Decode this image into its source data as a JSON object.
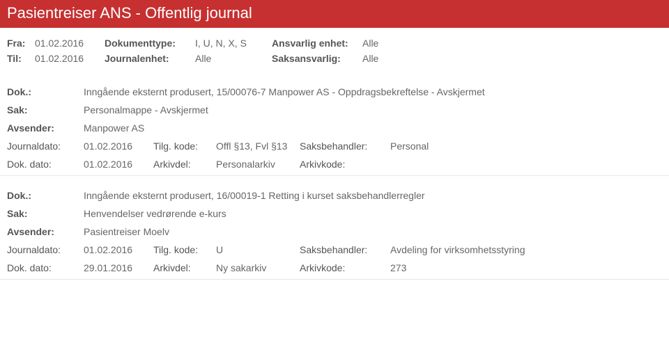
{
  "bar_title": "Pasientreiser ANS - Offentlig journal",
  "header": {
    "fra_label": "Fra:",
    "fra_value": "01.02.2016",
    "doktype_label": "Dokumenttype:",
    "doktype_value": "I, U, N, X, S",
    "ansvarlig_label": "Ansvarlig enhet:",
    "ansvarlig_value": "Alle",
    "til_label": "Til:",
    "til_value": "01.02.2016",
    "journalenhet_label": "Journalenhet:",
    "journalenhet_value": "Alle",
    "saksansvarlig_label": "Saksansvarlig:",
    "saksansvarlig_value": "Alle"
  },
  "records": [
    {
      "dok_label": "Dok.:",
      "dok_value": "Inngående eksternt produsert, 15/00076-7 Manpower AS - Oppdragsbekreftelse - Avskjermet",
      "sak_label": "Sak:",
      "sak_value": "Personalmappe - Avskjermet",
      "avsender_label": "Avsender:",
      "avsender_value": "Manpower AS",
      "journaldato_label": "Journaldato:",
      "journaldato_value": "01.02.2016",
      "tilgkode_label": "Tilg. kode:",
      "tilgkode_value": "Offl §13, Fvl §13",
      "saksbehandler_label": "Saksbehandler:",
      "saksbehandler_value": "Personal",
      "dokdato_label": "Dok. dato:",
      "dokdato_value": "01.02.2016",
      "arkivdel_label": "Arkivdel:",
      "arkivdel_value": "Personalarkiv",
      "arkivkode_label": "Arkivkode:",
      "arkivkode_value": ""
    },
    {
      "dok_label": "Dok.:",
      "dok_value": "Inngående eksternt produsert, 16/00019-1 Retting i kurset saksbehandlerregler",
      "sak_label": "Sak:",
      "sak_value": "Henvendelser vedrørende e-kurs",
      "avsender_label": "Avsender:",
      "avsender_value": "Pasientreiser Moelv",
      "journaldato_label": "Journaldato:",
      "journaldato_value": "01.02.2016",
      "tilgkode_label": "Tilg. kode:",
      "tilgkode_value": "U",
      "saksbehandler_label": "Saksbehandler:",
      "saksbehandler_value": "Avdeling for virksomhetsstyring",
      "dokdato_label": "Dok. dato:",
      "dokdato_value": "29.01.2016",
      "arkivdel_label": "Arkivdel:",
      "arkivdel_value": "Ny sakarkiv",
      "arkivkode_label": "Arkivkode:",
      "arkivkode_value": "273"
    }
  ]
}
